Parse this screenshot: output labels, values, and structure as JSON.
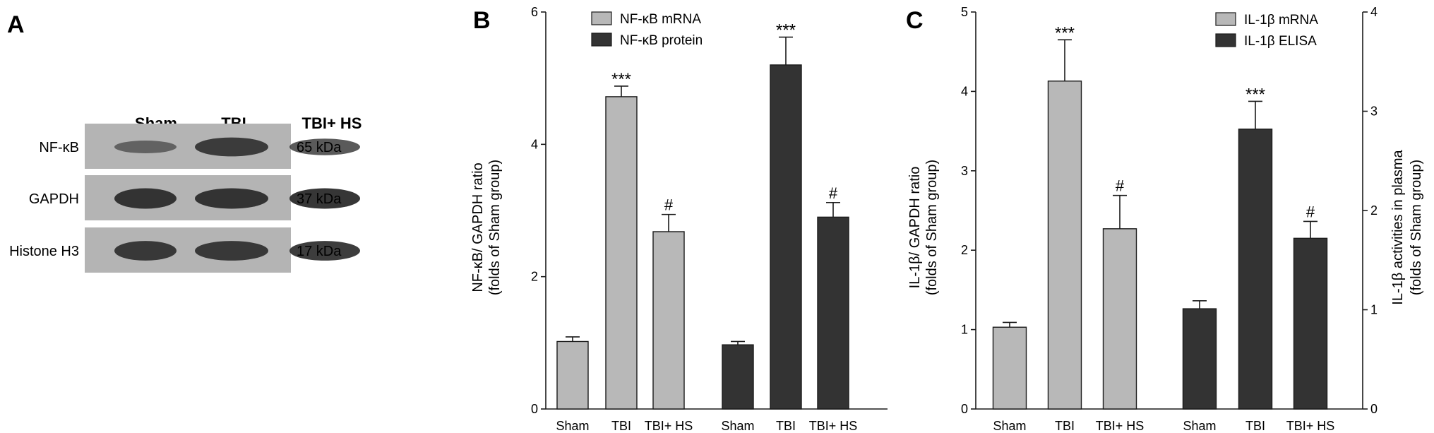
{
  "colors": {
    "light": "#b8b8b8",
    "dark": "#333333",
    "axis": "#1a1a1a",
    "blot_bg": "#b4b4b4",
    "band": "#2e2e2e"
  },
  "panelA": {
    "letter": "A",
    "lanes": [
      "Sham",
      "TBI",
      "TBI+ HS"
    ],
    "blots": [
      {
        "label": "NF-κB",
        "size": "65 kDa",
        "intensity": [
          0.45,
          0.85,
          0.7
        ]
      },
      {
        "label": "GAPDH",
        "size": "37 kDa",
        "intensity": [
          0.95,
          0.95,
          0.95
        ]
      },
      {
        "label": "Histone H3",
        "size": "17 kDa",
        "intensity": [
          0.9,
          0.9,
          0.9
        ]
      }
    ]
  },
  "chart_data": [
    {
      "type": "bar",
      "panel": "B",
      "ylabel_line1": "NF-κB/ GAPDH ratio",
      "ylabel_line2": "(folds of Sham group)",
      "ylim": [
        0,
        6
      ],
      "yticks": [
        0,
        2,
        4,
        6
      ],
      "categories": [
        "Sham",
        "TBI",
        "TBI+ HS",
        "Sham",
        "TBI",
        "TBI+ HS"
      ],
      "series": [
        {
          "name": "NF-κB mRNA",
          "color": "light",
          "positions": [
            0,
            1,
            2
          ],
          "values": [
            1.02,
            4.72,
            2.68
          ],
          "errors": [
            0.07,
            0.16,
            0.26
          ],
          "annotations": [
            "",
            "***",
            "#"
          ]
        },
        {
          "name": "NF-κB protein",
          "color": "dark",
          "positions": [
            3,
            4,
            5
          ],
          "values": [
            0.97,
            5.2,
            2.9
          ],
          "errors": [
            0.05,
            0.42,
            0.22
          ],
          "annotations": [
            "",
            "***",
            "#"
          ]
        }
      ],
      "legend": "top"
    },
    {
      "type": "bar",
      "panel": "C",
      "ylabel_line1": "IL-1β/ GAPDH ratio",
      "ylabel_line2": "(folds of Sham group)",
      "y2label_line1": "IL-1β activities in plasma",
      "y2label_line2": "(folds of Sham group)",
      "ylim": [
        0,
        5
      ],
      "yticks": [
        0,
        1,
        2,
        3,
        4,
        5
      ],
      "y2lim": [
        0,
        4
      ],
      "y2ticks": [
        0,
        1,
        2,
        3,
        4
      ],
      "categories": [
        "Sham",
        "TBI",
        "TBI+ HS",
        "Sham",
        "TBI",
        "TBI+ HS"
      ],
      "series": [
        {
          "name": "IL-1β mRNA",
          "color": "light",
          "axis": "left",
          "positions": [
            0,
            1,
            2
          ],
          "values": [
            1.03,
            4.13,
            2.27
          ],
          "errors": [
            0.06,
            0.52,
            0.42
          ],
          "annotations": [
            "",
            "***",
            "#"
          ]
        },
        {
          "name": "IL-1β ELISA",
          "color": "dark",
          "axis": "right",
          "positions": [
            3,
            4,
            5
          ],
          "values": [
            1.01,
            2.82,
            1.72
          ],
          "errors": [
            0.08,
            0.28,
            0.17
          ],
          "annotations": [
            "",
            "***",
            "#"
          ]
        }
      ],
      "legend": "top-right"
    }
  ]
}
